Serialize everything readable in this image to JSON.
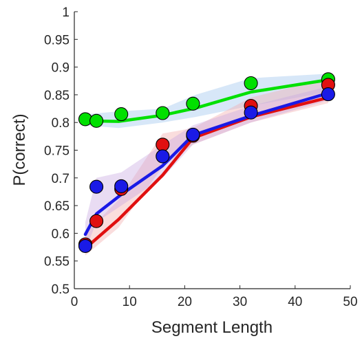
{
  "chart_data": {
    "type": "line",
    "title": "",
    "xlabel": "Segment Length",
    "ylabel": "P(correct)",
    "xlim": [
      0,
      50
    ],
    "ylim": [
      0.5,
      1
    ],
    "xticks": [
      "0",
      "10",
      "20",
      "30",
      "40",
      "50"
    ],
    "yticks": [
      "0.5",
      "0.55",
      "0.6",
      "0.65",
      "0.7",
      "0.75",
      "0.8",
      "0.85",
      "0.9",
      "0.95",
      "1"
    ],
    "grid": false,
    "legend": "none",
    "series": [
      {
        "color": "#00e000",
        "band_color": "#9cc4ee",
        "points": {
          "x": [
            2,
            4,
            8.5,
            16,
            21.5,
            32,
            46
          ],
          "y": [
            0.806,
            0.803,
            0.815,
            0.817,
            0.834,
            0.871,
            0.878
          ]
        },
        "fit": {
          "x": [
            2,
            8,
            16,
            22,
            32,
            46
          ],
          "y": [
            0.803,
            0.802,
            0.813,
            0.826,
            0.855,
            0.877
          ]
        },
        "band_upper": [
          0.815,
          0.82,
          0.825,
          0.85,
          0.88,
          0.888
        ],
        "band_lower": [
          0.795,
          0.79,
          0.8,
          0.81,
          0.83,
          0.855
        ]
      },
      {
        "color": "#e01010",
        "band_color": "#f2aaaa",
        "points": {
          "x": [
            2,
            4,
            8.5,
            16,
            21.5,
            32,
            46
          ],
          "y": [
            0.58,
            0.622,
            0.68,
            0.76,
            0.776,
            0.83,
            0.868
          ]
        },
        "fit": {
          "x": [
            2,
            8,
            16,
            21.5,
            32,
            46
          ],
          "y": [
            0.573,
            0.625,
            0.705,
            0.772,
            0.81,
            0.845
          ]
        },
        "band_upper": [
          0.6,
          0.66,
          0.78,
          0.79,
          0.845,
          0.88
        ],
        "band_lower": [
          0.56,
          0.61,
          0.72,
          0.76,
          0.8,
          0.835
        ]
      },
      {
        "color": "#1a1ae6",
        "band_color": "#c7a8e0",
        "points": {
          "x": [
            2,
            4,
            8.5,
            16,
            21.5,
            32,
            46
          ],
          "y": [
            0.577,
            0.684,
            0.685,
            0.739,
            0.778,
            0.818,
            0.851
          ]
        },
        "fit": {
          "x": [
            2,
            4,
            8.5,
            16,
            21.5,
            32,
            46
          ],
          "y": [
            0.598,
            0.635,
            0.67,
            0.722,
            0.777,
            0.812,
            0.853
          ]
        },
        "band_upper": [
          0.62,
          0.7,
          0.71,
          0.76,
          0.795,
          0.83,
          0.865
        ],
        "band_lower": [
          0.57,
          0.62,
          0.65,
          0.7,
          0.76,
          0.8,
          0.84
        ]
      }
    ]
  }
}
